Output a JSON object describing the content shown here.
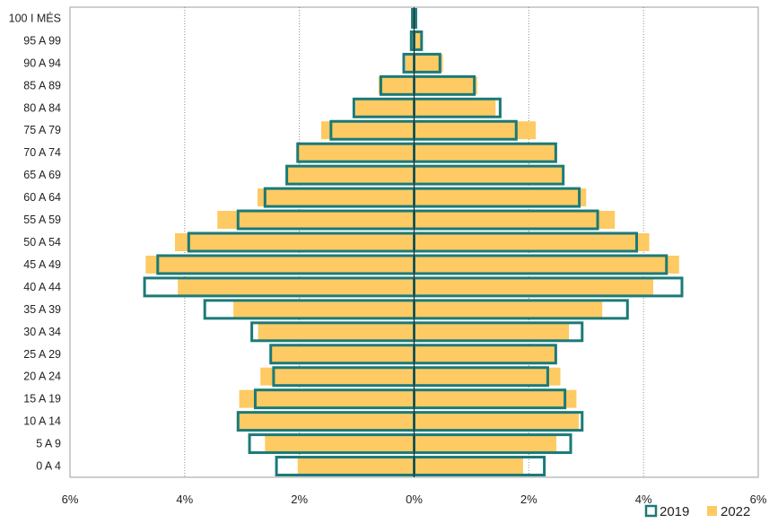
{
  "chart_data": {
    "type": "bar",
    "orientation": "horizontal",
    "layout": "population-pyramid",
    "categories": [
      "100 I MÉS",
      "95 A 99",
      "90 A 94",
      "85 A 89",
      "80 A 84",
      "75 A 79",
      "70 A 74",
      "65 A 69",
      "60 A 64",
      "55 A 59",
      "50 A 54",
      "45 A 49",
      "40 A 44",
      "35 A 39",
      "30 A 34",
      "25 A 29",
      "20 A 24",
      "15 A 19",
      "10 A 14",
      "5 A 9",
      "0 A 4"
    ],
    "series": [
      {
        "name": "2019",
        "style": "outline",
        "color": "#1b7a78",
        "left_values": [
          0.03,
          0.05,
          0.18,
          0.58,
          1.05,
          1.45,
          2.03,
          2.22,
          2.6,
          3.07,
          3.93,
          4.47,
          4.7,
          3.65,
          2.83,
          2.5,
          2.45,
          2.77,
          3.07,
          2.87,
          2.4
        ],
        "right_values": [
          0.03,
          0.13,
          0.45,
          1.05,
          1.5,
          1.78,
          2.47,
          2.6,
          2.88,
          3.2,
          3.88,
          4.4,
          4.67,
          3.72,
          2.93,
          2.47,
          2.33,
          2.63,
          2.93,
          2.73,
          2.27
        ]
      },
      {
        "name": "2022",
        "style": "fill",
        "color": "#fdca63",
        "left_values": [
          0.02,
          0.05,
          0.15,
          0.62,
          1.02,
          1.62,
          2.05,
          2.23,
          2.73,
          3.43,
          4.17,
          4.68,
          4.12,
          3.15,
          2.72,
          2.5,
          2.68,
          3.05,
          3.05,
          2.6,
          2.03
        ],
        "right_values": [
          0.03,
          0.15,
          0.5,
          1.1,
          1.42,
          2.12,
          2.45,
          2.58,
          3.0,
          3.5,
          4.1,
          4.62,
          4.17,
          3.28,
          2.7,
          2.45,
          2.55,
          2.83,
          2.87,
          2.48,
          1.9
        ]
      }
    ],
    "x_ticks": [
      "6%",
      "4%",
      "2%",
      "0%",
      "2%",
      "4%",
      "6%"
    ],
    "xlim": [
      -6,
      6
    ],
    "xlabel": "",
    "ylabel": "",
    "grid": {
      "vertical": true,
      "horizontal": false,
      "style": "dotted"
    },
    "legend": {
      "position": "bottom-right",
      "entries": [
        "2019",
        "2022"
      ]
    }
  }
}
